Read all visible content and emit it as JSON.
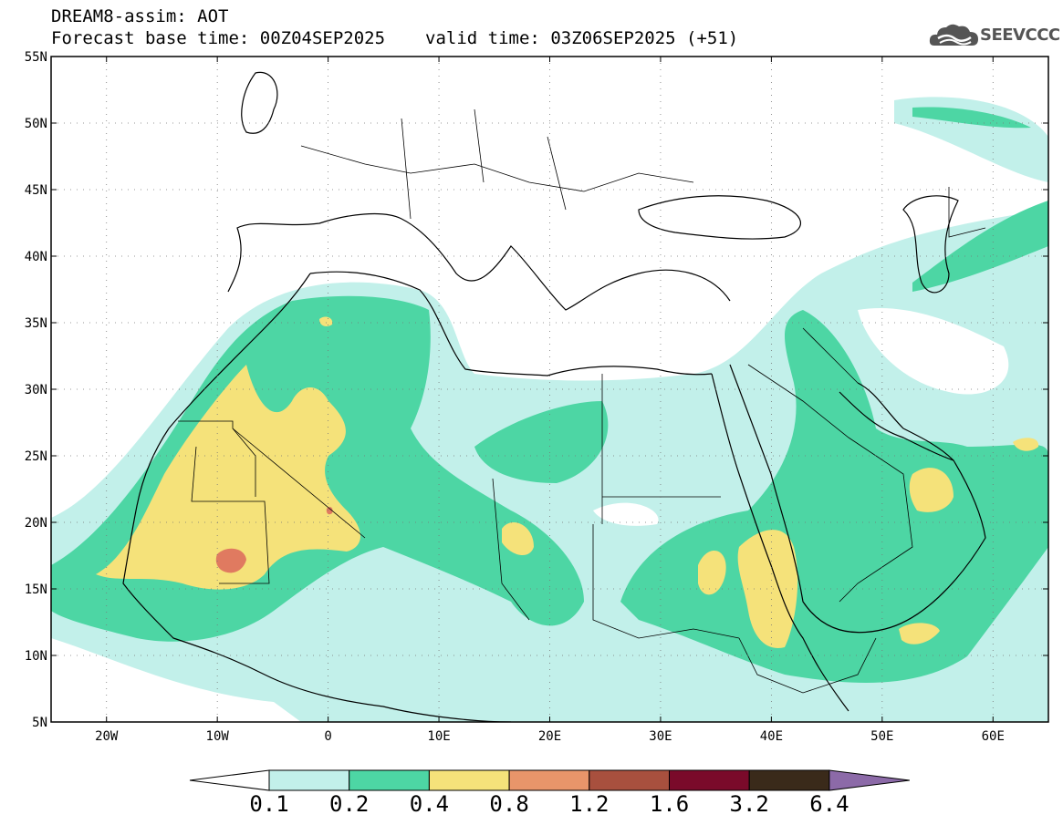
{
  "header": {
    "title": "DREAM8-assim: AOT",
    "base_time": "Forecast base time: 00Z04SEP2025",
    "valid_time": "valid time: 03Z06SEP2025 (+51)"
  },
  "logo": {
    "text": "SEEVCCC",
    "icon": "cloud-icon"
  },
  "map": {
    "lon_range": [
      -25,
      65
    ],
    "lat_range": [
      5,
      55
    ],
    "lon_ticks": [
      "20W",
      "10W",
      "0",
      "10E",
      "20E",
      "30E",
      "40E",
      "50E",
      "60E"
    ],
    "lon_tick_values": [
      -20,
      -10,
      0,
      10,
      20,
      30,
      40,
      50,
      60
    ],
    "lat_ticks": [
      "5N",
      "10N",
      "15N",
      "20N",
      "25N",
      "30N",
      "35N",
      "40N",
      "45N",
      "50N",
      "55N"
    ],
    "lat_tick_values": [
      5,
      10,
      15,
      20,
      25,
      30,
      35,
      40,
      45,
      50,
      55
    ],
    "grid": "dotted"
  },
  "colorbar": {
    "labels": [
      "0.1",
      "0.2",
      "0.4",
      "0.8",
      "1.2",
      "1.6",
      "3.2",
      "6.4"
    ],
    "colors": [
      "#c2f0ea",
      "#4dd6a4",
      "#f5e27a",
      "#e8956a",
      "#a8503e",
      "#7a0a2a",
      "#3a2a1a"
    ],
    "under_color": "#ffffff",
    "over_color": "#8c6aa8"
  },
  "palette": {
    "low": "#c2f0ea",
    "mid": "#4dd6a4",
    "high": "#f5e27a",
    "peak": "#e07a60"
  }
}
